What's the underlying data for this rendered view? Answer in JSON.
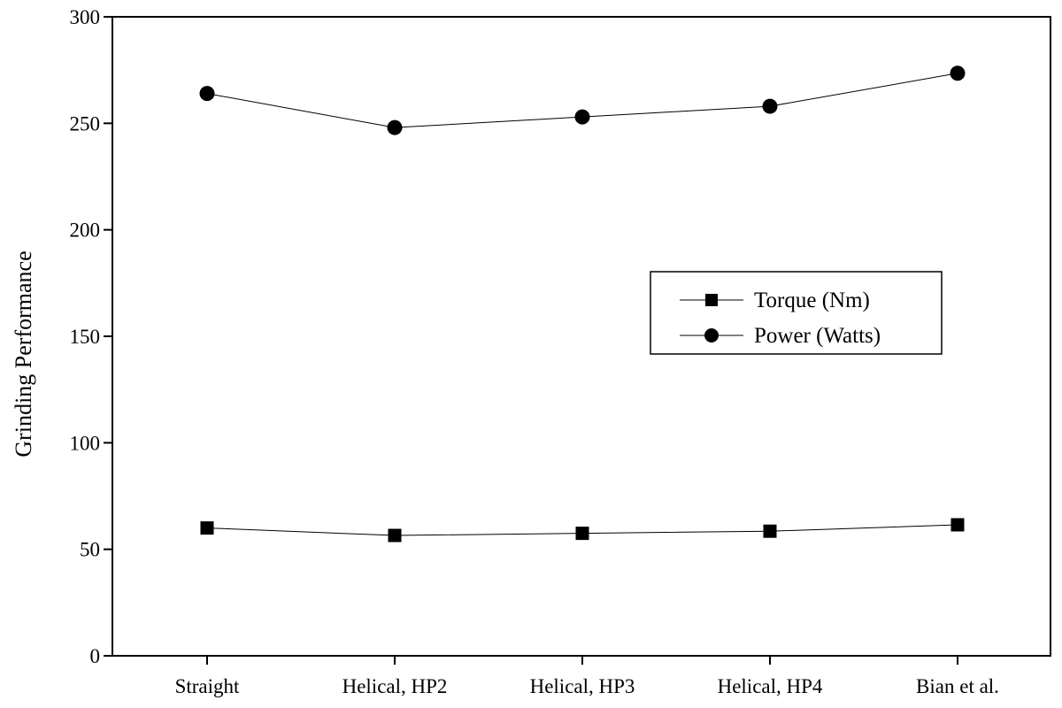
{
  "chart_data": {
    "type": "line",
    "title": "",
    "xlabel": "",
    "ylabel": "Grinding Performance",
    "ylim": [
      0,
      300
    ],
    "yticks": [
      0,
      50,
      100,
      150,
      200,
      250,
      300
    ],
    "grid": false,
    "legend_position": "center-right",
    "categories": [
      "Straight",
      "Helical, HP2",
      "Helical, HP3",
      "Helical, HP4",
      "Bian et al."
    ],
    "series": [
      {
        "name": "Torque (Nm)",
        "marker": "square",
        "values": [
          60,
          56.5,
          57.5,
          58.5,
          61.5
        ]
      },
      {
        "name": "Power (Watts)",
        "marker": "circle",
        "values": [
          264,
          248,
          253,
          258,
          273.5
        ]
      }
    ]
  }
}
